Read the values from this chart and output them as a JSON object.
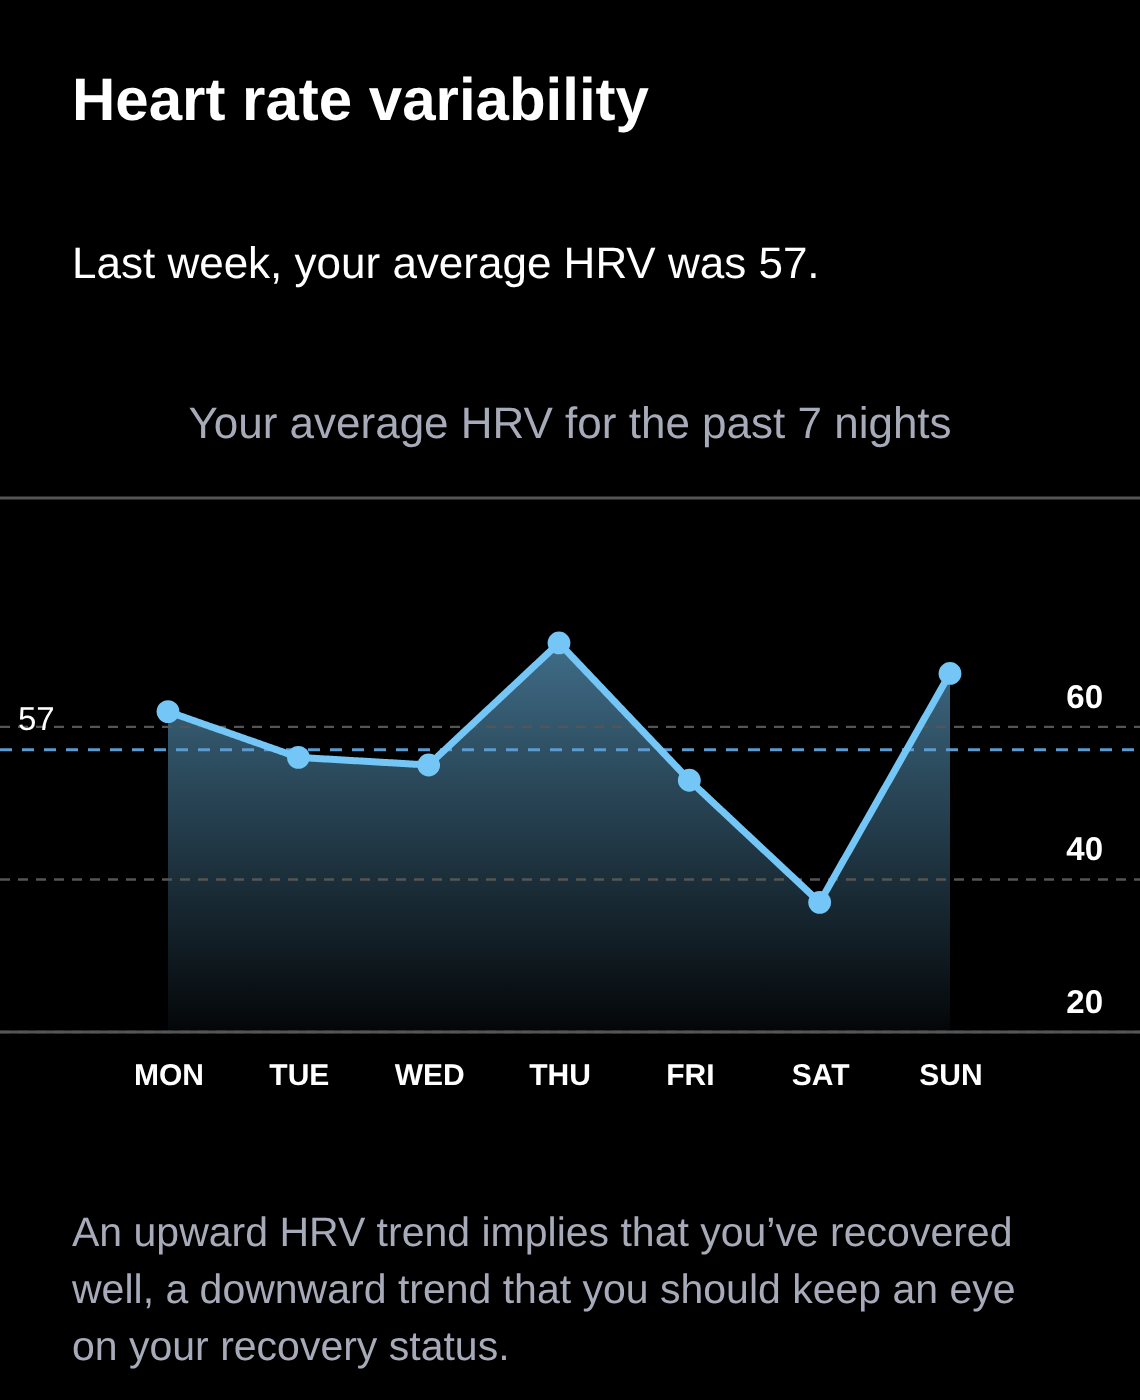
{
  "chart_data": {
    "type": "area",
    "title": "Heart rate variability",
    "subtitle": "Last week, your average HRV was 57.",
    "annotations": [
      "Your average HRV for the past 7 nights",
      "An upward HRV trend implies that you’ve recovered well, a downward trend that you should keep an eye on your recovery status."
    ],
    "categories": [
      "MON",
      "TUE",
      "WED",
      "THU",
      "FRI",
      "SAT",
      "SUN"
    ],
    "series": [
      {
        "color": "#74c6f7",
        "values": [
          62,
          56,
          55,
          71,
          53,
          37,
          67
        ]
      }
    ],
    "ylim": [
      20,
      90
    ],
    "yticks": [
      20,
      40,
      60
    ],
    "grid": "y",
    "marker": "circle",
    "line_style": "solid",
    "ref_lines": [
      {
        "axis": "y",
        "value": 57,
        "label": "57",
        "color": "#5b9bd0",
        "line_style": "dashed"
      }
    ]
  }
}
